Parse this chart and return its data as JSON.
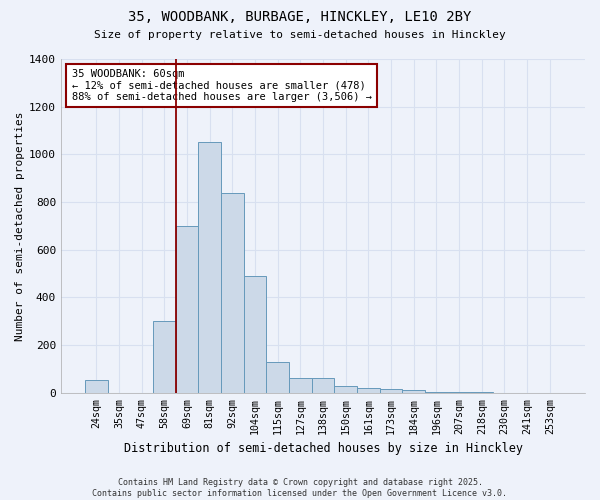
{
  "title1": "35, WOODBANK, BURBAGE, HINCKLEY, LE10 2BY",
  "title2": "Size of property relative to semi-detached houses in Hinckley",
  "xlabel": "Distribution of semi-detached houses by size in Hinckley",
  "ylabel": "Number of semi-detached properties",
  "bar_color": "#ccd9e8",
  "bar_edge_color": "#6699bb",
  "categories": [
    "24sqm",
    "35sqm",
    "47sqm",
    "58sqm",
    "69sqm",
    "81sqm",
    "92sqm",
    "104sqm",
    "115sqm",
    "127sqm",
    "138sqm",
    "150sqm",
    "161sqm",
    "173sqm",
    "184sqm",
    "196sqm",
    "207sqm",
    "218sqm",
    "230sqm",
    "241sqm",
    "253sqm"
  ],
  "values": [
    55,
    0,
    0,
    300,
    700,
    1050,
    840,
    490,
    130,
    60,
    60,
    30,
    20,
    15,
    10,
    5,
    3,
    2,
    1,
    0,
    0
  ],
  "ylim": [
    0,
    1400
  ],
  "yticks": [
    0,
    200,
    400,
    600,
    800,
    1000,
    1200,
    1400
  ],
  "vline_index": 3.5,
  "annotation_text": "35 WOODBANK: 60sqm\n← 12% of semi-detached houses are smaller (478)\n88% of semi-detached houses are larger (3,506) →",
  "footer": "Contains HM Land Registry data © Crown copyright and database right 2025.\nContains public sector information licensed under the Open Government Licence v3.0.",
  "bg_color": "#eef2fa",
  "grid_color": "#d8e0f0"
}
